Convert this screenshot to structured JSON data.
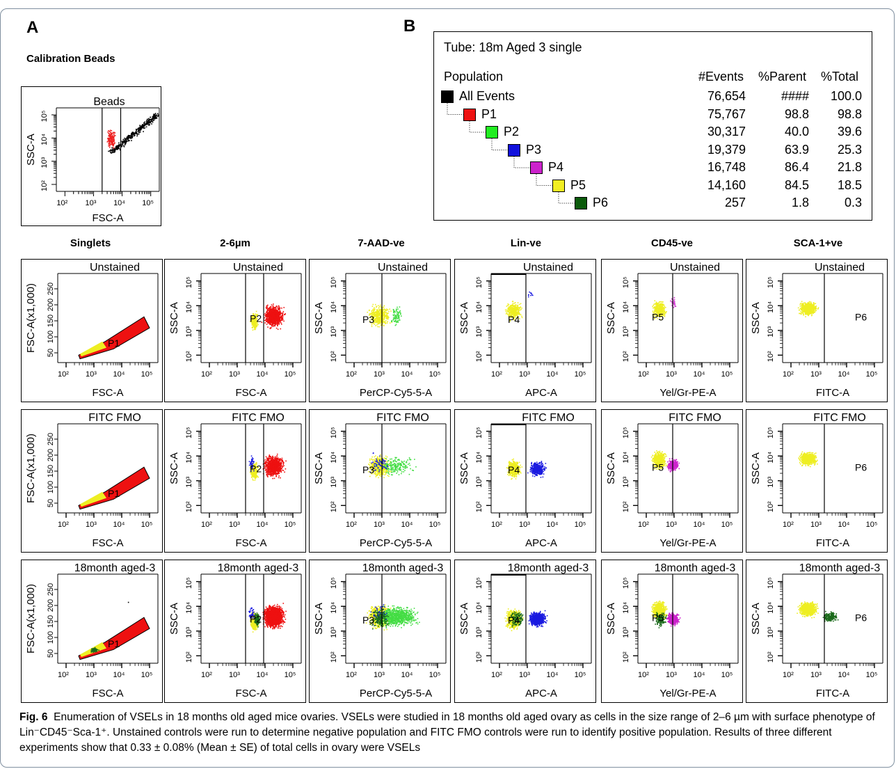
{
  "panel_labels": {
    "a": "A",
    "b": "B"
  },
  "calibration": {
    "title": "Calibration Beads",
    "plot": {
      "title": "Beads",
      "xlabel": "FSC-A",
      "ylabel": "SSC-A"
    }
  },
  "stats_table": {
    "tube": "Tube:   18m Aged 3 single",
    "headers": {
      "population": "Population",
      "events": "#Events",
      "parent": "%Parent",
      "total": "%Total"
    },
    "rows": [
      {
        "name": "All Events",
        "events": "76,654",
        "parent": "####",
        "total": "100.0",
        "color": "#000000"
      },
      {
        "name": "P1",
        "events": "75,767",
        "parent": "98.8",
        "total": "98.8",
        "color": "#ee1111"
      },
      {
        "name": "P2",
        "events": "30,317",
        "parent": "40.0",
        "total": "39.6",
        "color": "#22ee22"
      },
      {
        "name": "P3",
        "events": "19,379",
        "parent": "63.9",
        "total": "25.3",
        "color": "#1111dd"
      },
      {
        "name": "P4",
        "events": "16,748",
        "parent": "86.4",
        "total": "21.8",
        "color": "#cc22cc"
      },
      {
        "name": "P5",
        "events": "14,160",
        "parent": "84.5",
        "total": "18.5",
        "color": "#f2ee22"
      },
      {
        "name": "P6",
        "events": "257",
        "parent": "1.8",
        "total": "0.3",
        "color": "#0b5a0b"
      }
    ]
  },
  "columns": [
    {
      "header": "Singlets",
      "xlabel": "FSC-A",
      "ylabel": "FSC-A(x1,000)",
      "gate": "P1"
    },
    {
      "header": "2-6µm",
      "xlabel": "FSC-A",
      "ylabel": "SSC-A",
      "gate": "P2"
    },
    {
      "header": "7-AAD-ve",
      "xlabel": "PerCP-Cy5-5-A",
      "ylabel": "SSC-A",
      "gate": "P3"
    },
    {
      "header": "Lin-ve",
      "xlabel": "APC-A",
      "ylabel": "SSC-A",
      "gate": "P4"
    },
    {
      "header": "CD45-ve",
      "xlabel": "Yel/Gr-PE-A",
      "ylabel": "SSC-A",
      "gate": "P5"
    },
    {
      "header": "SCA-1+ve",
      "xlabel": "FITC-A",
      "ylabel": "SSC-A",
      "gate": "P6"
    }
  ],
  "rows": [
    "Unstained",
    "FITC FMO",
    "18month aged-3"
  ],
  "axis_ticks": {
    "x": [
      "10²",
      "10³",
      "10⁴",
      "10⁵"
    ],
    "y": [
      "10²",
      "10³",
      "10⁴",
      "10⁵"
    ],
    "fsc_y": [
      "50",
      "100",
      "150",
      "200",
      "250"
    ]
  },
  "caption": {
    "label": "Fig. 6",
    "text": "Enumeration of VSELs in 18 months old aged mice ovaries. VSELs were studied in 18 months old aged ovary as cells in the size range of 2–6 µm with surface phenotype of Lin⁻CD45⁻Sca-1⁺. Unstained controls were run to determine negative population and FITC FMO controls were run to identify positive population. Results of three different experiments show that 0.33 ± 0.08% (Mean ± SE) of total cells in ovary were  VSELs"
  },
  "colors": {
    "p1": "#ee1111",
    "p2": "#eeee22",
    "p3": "#44dd44",
    "p4": "#1a1ae0",
    "p5": "#cc22cc",
    "p6": "#1a6a1a",
    "black": "#000000"
  }
}
